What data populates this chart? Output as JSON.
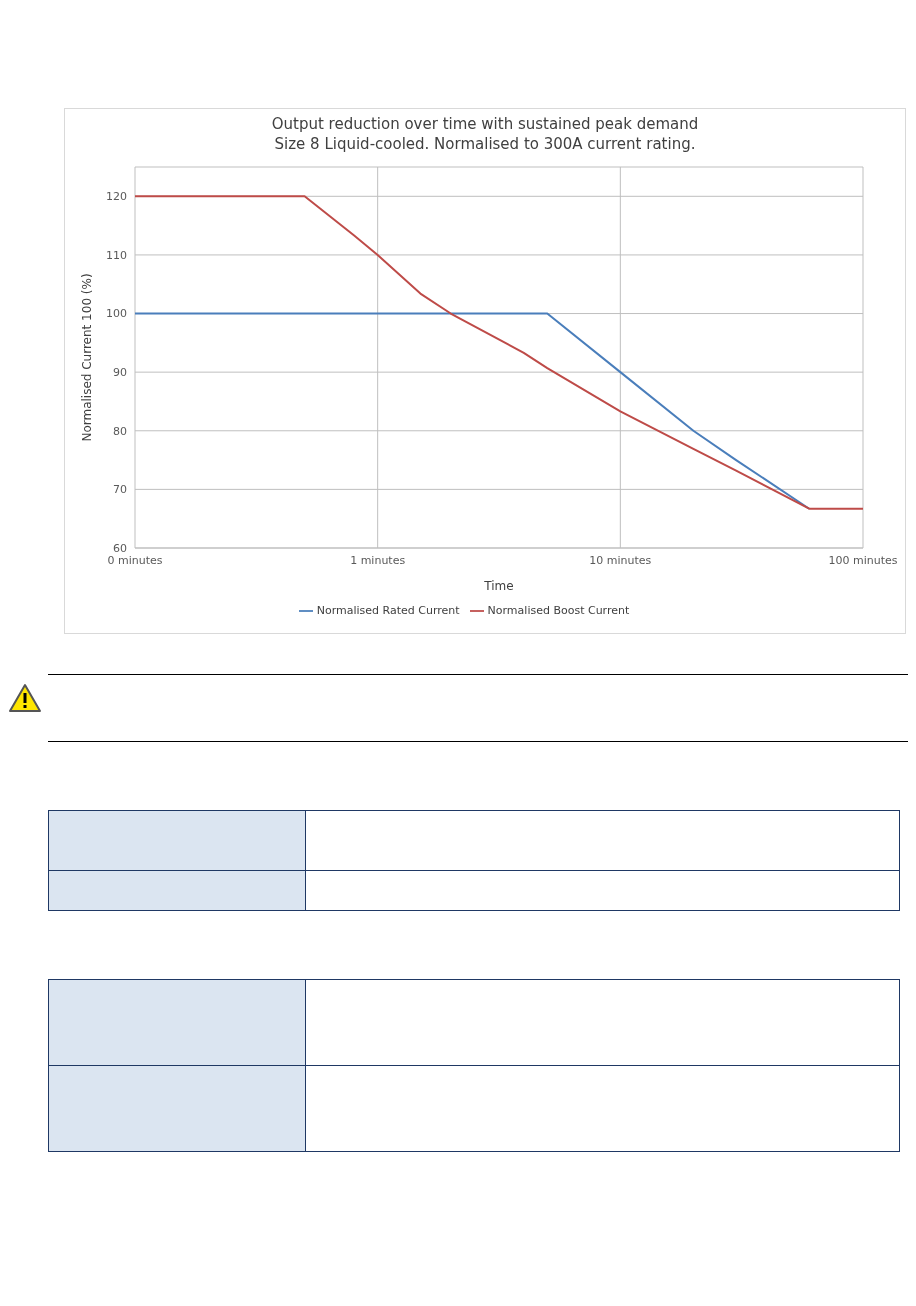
{
  "chart_data": {
    "type": "line",
    "title": "Output reduction over time with sustained peak demand",
    "subtitle": "Size 8 Liquid-cooled. Normalised to 300A current rating.",
    "xlabel": "Time",
    "ylabel": "Normalised Current 100 (%)",
    "log": "x",
    "xlim": [
      0.1,
      100
    ],
    "xticks": [
      {
        "value": 0.1,
        "label": "0 minutes"
      },
      {
        "value": 1,
        "label": "1 minutes"
      },
      {
        "value": 10,
        "label": "10 minutes"
      },
      {
        "value": 100,
        "label": "100 minutes"
      }
    ],
    "ylim": [
      60,
      125
    ],
    "yticks": [
      60,
      70,
      80,
      90,
      100,
      110,
      120
    ],
    "grid": true,
    "legend": "bottom",
    "marker": "none",
    "line_style": "solid",
    "series": [
      {
        "name": "Normalised Rated Current",
        "color": "#4a7ebb",
        "x": [
          0.1,
          5,
          10,
          20,
          30,
          60
        ],
        "values": [
          100,
          100,
          90,
          80,
          75,
          66.7
        ]
      },
      {
        "name": "Normalised Boost Current",
        "color": "#be4b48",
        "x": [
          0.1,
          0.5,
          0.8,
          1,
          1.5,
          2,
          4,
          5,
          10,
          20,
          30,
          60,
          100
        ],
        "values": [
          120,
          120,
          113.3,
          110,
          103.4,
          100,
          93.3,
          90.7,
          83.3,
          76.9,
          73.2,
          66.7,
          66.7
        ]
      }
    ]
  }
}
